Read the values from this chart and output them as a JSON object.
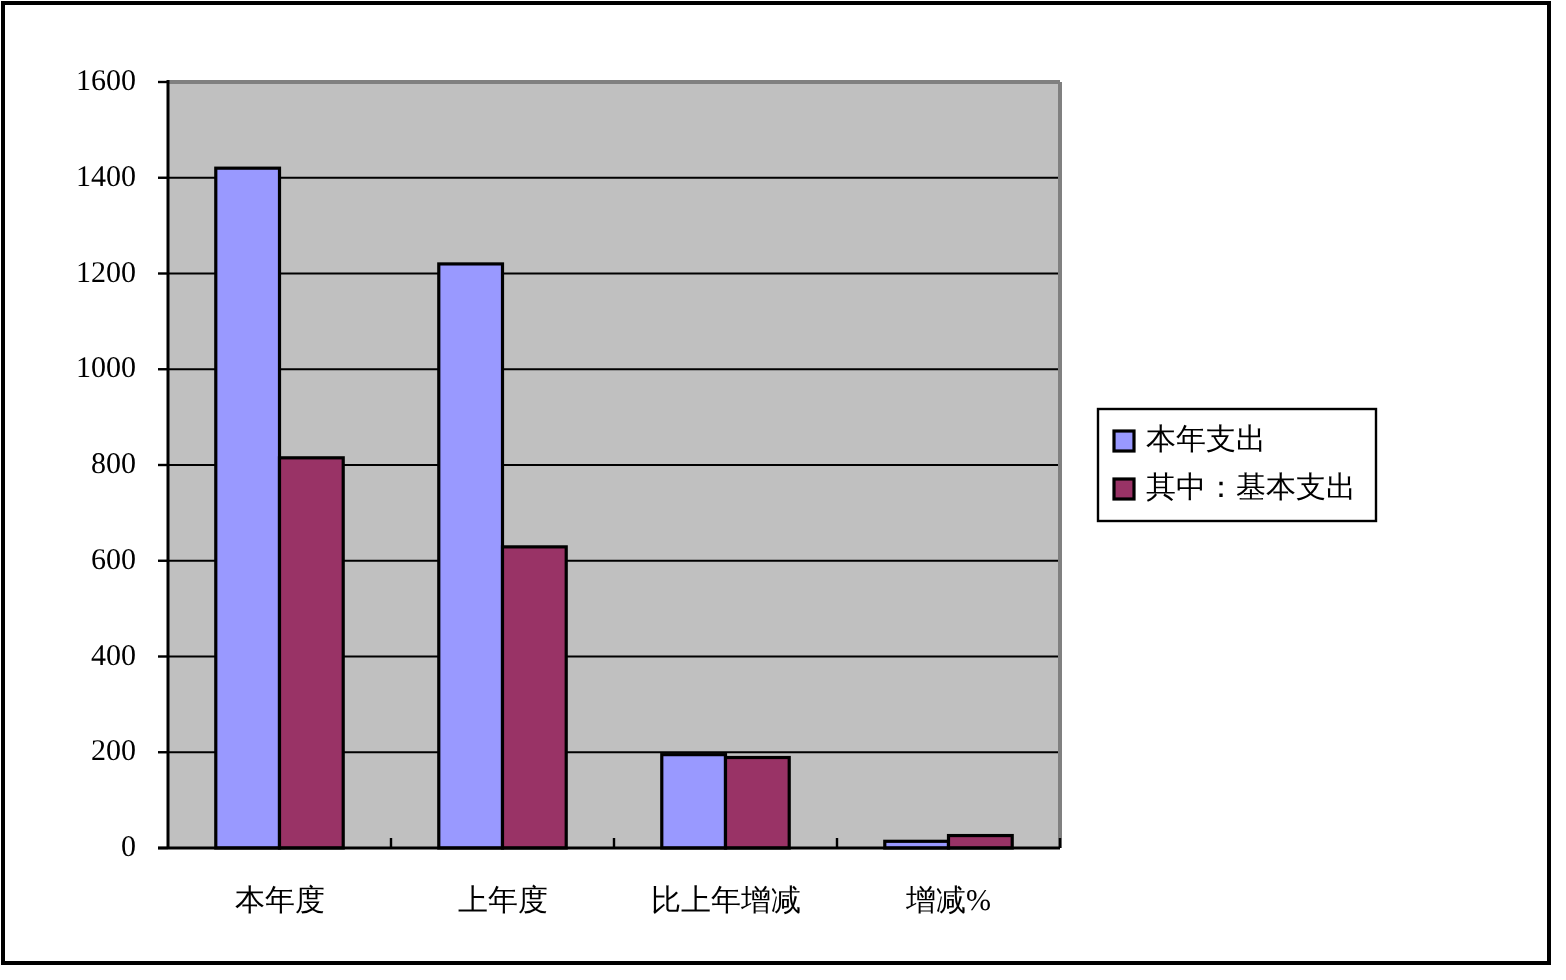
{
  "chart_data": {
    "type": "bar",
    "categories": [
      "本年度",
      "上年度",
      "比上年增减",
      "增减%"
    ],
    "series": [
      {
        "name": "本年支出",
        "color": "#9999ff",
        "values": [
          1420,
          1220,
          195,
          14
        ]
      },
      {
        "name": "其中：基本支出",
        "color": "#993366",
        "values": [
          815,
          629,
          189,
          26
        ]
      }
    ],
    "ylim": [
      0,
      1600
    ],
    "yticks": [
      0,
      200,
      400,
      600,
      800,
      1000,
      1200,
      1400,
      1600
    ],
    "grid": "y",
    "legend": "right"
  }
}
